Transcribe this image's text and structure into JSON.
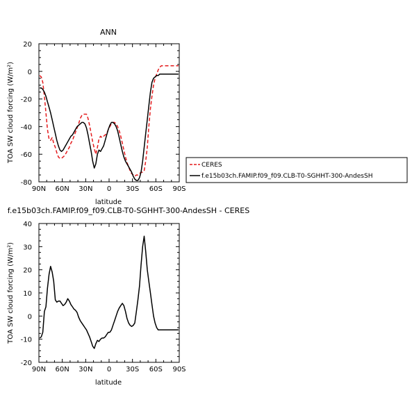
{
  "chart_data": [
    {
      "type": "line",
      "title": "ANN",
      "xlabel": "latitude",
      "ylabel": "TOA SW cloud forcing (W/m²)",
      "xlim": [
        90,
        -90
      ],
      "ylim": [
        -80,
        20
      ],
      "xticks": [
        {
          "value": 90,
          "label": "90N"
        },
        {
          "value": 60,
          "label": "60N"
        },
        {
          "value": 30,
          "label": "30N"
        },
        {
          "value": 0,
          "label": "0"
        },
        {
          "value": -30,
          "label": "30S"
        },
        {
          "value": -60,
          "label": "60S"
        },
        {
          "value": -90,
          "label": "90S"
        }
      ],
      "yticks": [
        20,
        0,
        -20,
        -40,
        -60,
        -80
      ],
      "legend": {
        "placement": "right",
        "entries": [
          {
            "label": "CERES",
            "color": "#e41a1c",
            "style": "dashed"
          },
          {
            "label": "f.e15b03ch.FAMIP.f09_f09.CLB-T0-SGHHT-300-AndesSH",
            "color": "#000000",
            "style": "solid"
          }
        ]
      },
      "series": [
        {
          "name": "CERES",
          "color": "#e41a1c",
          "style": "dashed",
          "x": [
            89,
            87,
            85,
            83,
            81,
            79,
            77,
            75,
            73,
            71,
            69,
            67,
            65,
            63,
            61,
            59,
            57,
            55,
            53,
            51,
            49,
            47,
            45,
            43,
            41,
            39,
            37,
            35,
            33,
            31,
            29,
            27,
            25,
            23,
            21,
            19,
            17,
            15,
            13,
            11,
            9,
            7,
            5,
            3,
            1,
            -1,
            -3,
            -5,
            -7,
            -9,
            -11,
            -13,
            -15,
            -17,
            -19,
            -21,
            -23,
            -25,
            -27,
            -29,
            -31,
            -33,
            -35,
            -37,
            -39,
            -41,
            -43,
            -45,
            -47,
            -49,
            -51,
            -53,
            -55,
            -57,
            -59,
            -61,
            -63,
            -65,
            -67,
            -69,
            -71,
            -73,
            -75,
            -77,
            -79,
            -81,
            -83,
            -85,
            -87,
            -89
          ],
          "y": [
            -3,
            -4,
            -8,
            -18,
            -30,
            -42,
            -49,
            -50,
            -48,
            -52,
            -55,
            -59,
            -62,
            -63,
            -63,
            -62,
            -61,
            -59,
            -57,
            -55,
            -52,
            -50,
            -47,
            -44,
            -41,
            -38,
            -34,
            -32,
            -31,
            -31,
            -31,
            -34,
            -39,
            -45,
            -51,
            -56,
            -60,
            -55,
            -49,
            -47,
            -48,
            -47,
            -46,
            -45,
            -42,
            -40,
            -38,
            -37,
            -37,
            -38,
            -40,
            -43,
            -47,
            -52,
            -57,
            -62,
            -66,
            -69,
            -72,
            -74,
            -75,
            -76,
            -75,
            -75,
            -74,
            -73,
            -73,
            -72,
            -65,
            -55,
            -40,
            -27,
            -18,
            -10,
            -5,
            -2,
            1,
            3,
            4,
            4,
            4,
            4,
            4,
            4,
            4,
            4,
            4,
            4,
            4,
            4
          ]
        },
        {
          "name": "f.e15b03ch.FAMIP.f09_f09.CLB-T0-SGHHT-300-AndesSH",
          "color": "#000000",
          "style": "solid",
          "x": [
            89,
            87,
            85,
            83,
            81,
            79,
            77,
            75,
            73,
            71,
            69,
            67,
            65,
            63,
            61,
            59,
            57,
            55,
            53,
            51,
            49,
            47,
            45,
            43,
            41,
            39,
            37,
            35,
            33,
            31,
            29,
            27,
            25,
            23,
            21,
            19,
            17,
            15,
            13,
            11,
            9,
            7,
            5,
            3,
            1,
            -1,
            -3,
            -5,
            -7,
            -9,
            -11,
            -13,
            -15,
            -17,
            -19,
            -21,
            -23,
            -25,
            -27,
            -29,
            -31,
            -33,
            -35,
            -37,
            -39,
            -41,
            -43,
            -45,
            -47,
            -49,
            -51,
            -53,
            -55,
            -57,
            -59,
            -61,
            -63,
            -65,
            -67,
            -69,
            -71,
            -73,
            -75,
            -77,
            -79,
            -81,
            -83,
            -85,
            -87,
            -89
          ],
          "y": [
            -12,
            -12,
            -13,
            -15,
            -18,
            -22,
            -26,
            -30,
            -35,
            -40,
            -45,
            -50,
            -54,
            -57,
            -58,
            -57,
            -55,
            -53,
            -51,
            -49,
            -47,
            -46,
            -44,
            -42,
            -40,
            -39,
            -38,
            -37,
            -37,
            -38,
            -41,
            -46,
            -52,
            -58,
            -65,
            -70,
            -67,
            -60,
            -57,
            -58,
            -56,
            -54,
            -50,
            -46,
            -42,
            -39,
            -37,
            -37,
            -38,
            -40,
            -43,
            -48,
            -53,
            -58,
            -62,
            -65,
            -67,
            -69,
            -71,
            -73,
            -76,
            -78,
            -79,
            -79,
            -77,
            -73,
            -65,
            -55,
            -45,
            -35,
            -25,
            -15,
            -8,
            -5,
            -4,
            -3,
            -3,
            -2,
            -2,
            -2,
            -2,
            -2,
            -2,
            -2,
            -2,
            -2,
            -2,
            -2,
            -2,
            -2
          ]
        }
      ]
    },
    {
      "type": "line",
      "title": "f.e15b03ch.FAMIP.f09_f09.CLB-T0-SGHHT-300-AndesSH - CERES",
      "xlabel": "latitude",
      "ylabel": "TOA SW cloud forcing (W/m²)",
      "xlim": [
        90,
        -90
      ],
      "ylim": [
        -20,
        40
      ],
      "xticks": [
        {
          "value": 90,
          "label": "90N"
        },
        {
          "value": 60,
          "label": "60N"
        },
        {
          "value": 30,
          "label": "30N"
        },
        {
          "value": 0,
          "label": "0"
        },
        {
          "value": -30,
          "label": "30S"
        },
        {
          "value": -60,
          "label": "60S"
        },
        {
          "value": -90,
          "label": "90S"
        }
      ],
      "yticks": [
        40,
        30,
        20,
        10,
        0,
        -10,
        -20
      ],
      "series": [
        {
          "color": "#000000",
          "style": "solid",
          "x": [
            89,
            87,
            85,
            83,
            81,
            79,
            77,
            75,
            73,
            71,
            69,
            67,
            65,
            63,
            61,
            59,
            57,
            55,
            53,
            51,
            49,
            47,
            45,
            43,
            41,
            39,
            37,
            35,
            33,
            31,
            29,
            27,
            25,
            23,
            21,
            19,
            17,
            15,
            13,
            11,
            9,
            7,
            5,
            3,
            1,
            -1,
            -3,
            -5,
            -7,
            -9,
            -11,
            -13,
            -15,
            -17,
            -19,
            -21,
            -23,
            -25,
            -27,
            -29,
            -31,
            -33,
            -35,
            -37,
            -39,
            -41,
            -43,
            -45,
            -47,
            -49,
            -51,
            -53,
            -55,
            -57,
            -59,
            -61,
            -63,
            -65,
            -67,
            -69,
            -71,
            -73,
            -75,
            -77,
            -79,
            -81,
            -83,
            -85,
            -87,
            -89
          ],
          "y": [
            -9.5,
            -9,
            -7,
            2,
            4,
            12,
            18,
            21.5,
            19,
            15,
            7,
            6,
            6.5,
            6.5,
            5.5,
            4.5,
            5,
            6,
            7.5,
            6.5,
            5,
            4,
            3,
            2.5,
            1.5,
            -0.5,
            -2,
            -3,
            -4,
            -5,
            -6,
            -7.5,
            -9,
            -11,
            -13,
            -14,
            -12,
            -10.5,
            -11,
            -10,
            -9.5,
            -9.5,
            -9,
            -8,
            -7,
            -7,
            -6,
            -4,
            -2,
            0,
            2,
            3.5,
            4.5,
            5.5,
            4.5,
            2,
            -1,
            -3,
            -4,
            -4.5,
            -4,
            -3,
            2,
            7,
            13,
            22,
            30,
            34.5,
            28,
            20,
            15,
            10,
            5,
            0,
            -3,
            -5,
            -6,
            -6,
            -6,
            -6,
            -6,
            -6,
            -6,
            -6,
            -6,
            -6,
            -6,
            -6,
            -6,
            -6
          ]
        }
      ]
    }
  ]
}
